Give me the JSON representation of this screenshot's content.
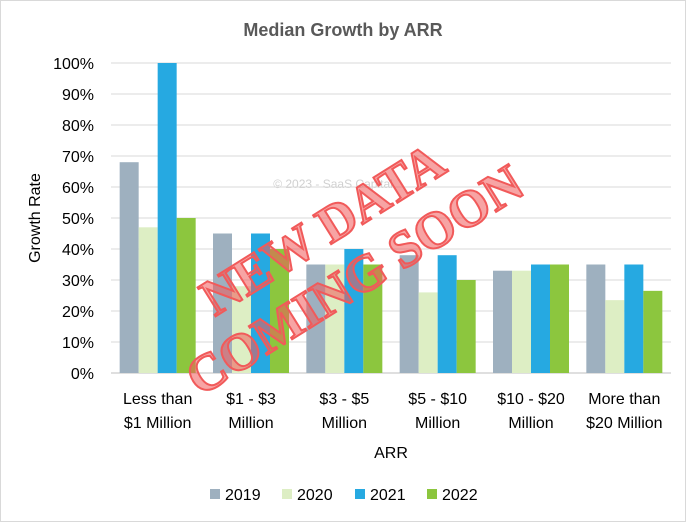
{
  "chart_data": {
    "type": "bar",
    "title": "Median Growth by ARR",
    "xlabel": "ARR",
    "ylabel": "Growth Rate",
    "categories": [
      [
        "Less than",
        "$1 Million"
      ],
      [
        "$1 - $3",
        "Million"
      ],
      [
        "$3 - $5",
        "Million"
      ],
      [
        "$5 - $10",
        "Million"
      ],
      [
        "$10 - $20",
        "Million"
      ],
      [
        "More than",
        "$20 Million"
      ]
    ],
    "yticks": [
      "0%",
      "10%",
      "20%",
      "30%",
      "40%",
      "50%",
      "60%",
      "70%",
      "80%",
      "90%",
      "100%"
    ],
    "ylim": [
      0,
      1
    ],
    "grid": true,
    "legend_position": "bottom",
    "series": [
      {
        "name": "2019",
        "color": "#9EB0BF",
        "values": [
          0.68,
          0.45,
          0.35,
          0.38,
          0.33,
          0.35
        ]
      },
      {
        "name": "2020",
        "color": "#DDEEC4",
        "values": [
          0.47,
          0.28,
          0.35,
          0.26,
          0.33,
          0.235
        ]
      },
      {
        "name": "2021",
        "color": "#26A9E1",
        "values": [
          1.0,
          0.45,
          0.4,
          0.38,
          0.35,
          0.35
        ]
      },
      {
        "name": "2022",
        "color": "#8CC63E",
        "values": [
          0.5,
          0.4,
          0.35,
          0.3,
          0.35,
          0.265
        ]
      }
    ]
  },
  "watermark": "© 2023 - SaaS Capital",
  "stamp": {
    "line1": "NEW DATA",
    "line2": "COMING SOON",
    "color": "#F15A5A"
  }
}
